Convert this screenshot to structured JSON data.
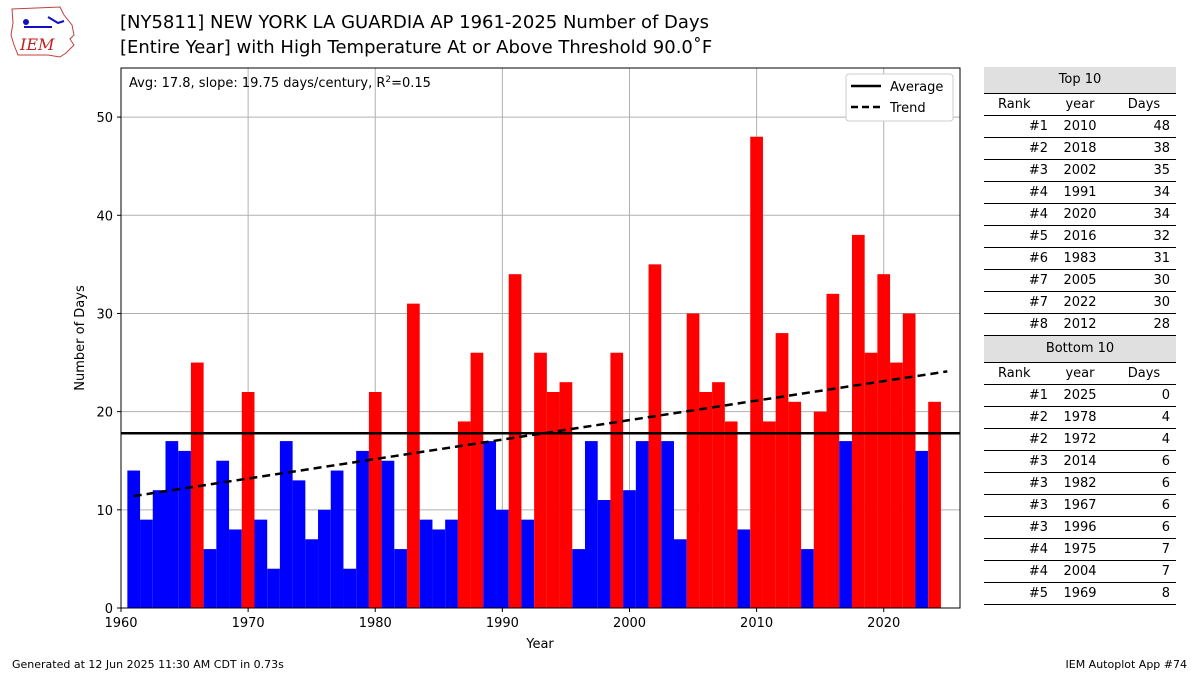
{
  "logo_text": "IEM",
  "title_line1": "[NY5811] NEW YORK LA GUARDIA AP 1961-2025 Number of Days",
  "title_line2": "[Entire Year] with High Temperature At or Above Threshold 90.0˚F",
  "annotation": "Avg: 17.8, slope: 19.75 days/century, R",
  "annotation_sup": "2",
  "annotation_tail": "=0.15",
  "legend": {
    "average": "Average",
    "trend": "Trend"
  },
  "footer_left": "Generated at 12 Jun 2025 11:30 AM CDT in 0.73s",
  "footer_right": "IEM Autoplot App #74",
  "colors": {
    "above": "#ff0000",
    "below": "#0000ff",
    "line": "#000000",
    "grid": "#b0b0b0"
  },
  "chart_data": {
    "type": "bar",
    "xlabel": "Year",
    "ylabel": "Number of Days",
    "xlim": [
      1960,
      2026
    ],
    "ylim": [
      0,
      55
    ],
    "xticks": [
      1960,
      1970,
      1980,
      1990,
      2000,
      2010,
      2020
    ],
    "yticks": [
      0,
      10,
      20,
      30,
      40,
      50
    ],
    "grid": true,
    "average": 17.8,
    "trend": {
      "start": [
        1961,
        11.4
      ],
      "end": [
        2025,
        24.1
      ]
    },
    "years": [
      1961,
      1962,
      1963,
      1964,
      1965,
      1966,
      1967,
      1968,
      1969,
      1970,
      1971,
      1972,
      1973,
      1974,
      1975,
      1976,
      1977,
      1978,
      1979,
      1980,
      1981,
      1982,
      1983,
      1984,
      1985,
      1986,
      1987,
      1988,
      1989,
      1990,
      1991,
      1992,
      1993,
      1994,
      1995,
      1996,
      1997,
      1998,
      1999,
      2000,
      2001,
      2002,
      2003,
      2004,
      2005,
      2006,
      2007,
      2008,
      2009,
      2010,
      2011,
      2012,
      2013,
      2014,
      2015,
      2016,
      2017,
      2018,
      2019,
      2020,
      2021,
      2022,
      2023,
      2024,
      2025
    ],
    "values": [
      14,
      9,
      12,
      17,
      16,
      25,
      6,
      15,
      8,
      22,
      9,
      4,
      17,
      13,
      7,
      10,
      14,
      4,
      16,
      22,
      15,
      6,
      31,
      9,
      8,
      9,
      19,
      26,
      17,
      10,
      34,
      9,
      26,
      22,
      23,
      6,
      17,
      11,
      26,
      12,
      17,
      35,
      17,
      7,
      30,
      22,
      23,
      19,
      8,
      48,
      19,
      28,
      21,
      6,
      20,
      32,
      17,
      38,
      26,
      34,
      25,
      30,
      16,
      21,
      0
    ],
    "legend_position": "top-right"
  },
  "top10": {
    "title": "Top 10",
    "headers": [
      "Rank",
      "year",
      "Days"
    ],
    "rows": [
      [
        "#1",
        "2010",
        "48"
      ],
      [
        "#2",
        "2018",
        "38"
      ],
      [
        "#3",
        "2002",
        "35"
      ],
      [
        "#4",
        "1991",
        "34"
      ],
      [
        "#4",
        "2020",
        "34"
      ],
      [
        "#5",
        "2016",
        "32"
      ],
      [
        "#6",
        "1983",
        "31"
      ],
      [
        "#7",
        "2005",
        "30"
      ],
      [
        "#7",
        "2022",
        "30"
      ],
      [
        "#8",
        "2012",
        "28"
      ]
    ]
  },
  "bottom10": {
    "title": "Bottom 10",
    "headers": [
      "Rank",
      "year",
      "Days"
    ],
    "rows": [
      [
        "#1",
        "2025",
        "0"
      ],
      [
        "#2",
        "1978",
        "4"
      ],
      [
        "#2",
        "1972",
        "4"
      ],
      [
        "#3",
        "2014",
        "6"
      ],
      [
        "#3",
        "1982",
        "6"
      ],
      [
        "#3",
        "1967",
        "6"
      ],
      [
        "#3",
        "1996",
        "6"
      ],
      [
        "#4",
        "1975",
        "7"
      ],
      [
        "#4",
        "2004",
        "7"
      ],
      [
        "#5",
        "1969",
        "8"
      ]
    ]
  }
}
